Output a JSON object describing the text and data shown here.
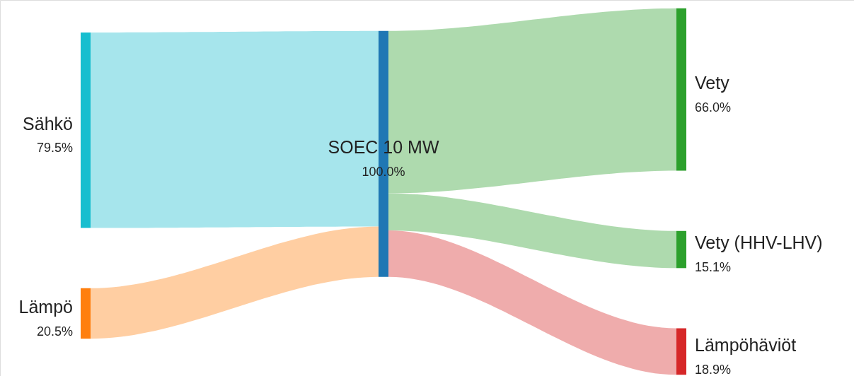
{
  "chart_data": {
    "type": "other",
    "categories": [
      "Sähkö",
      "Lämpö",
      "SOEC 10 MW",
      "Vety",
      "Vety (HHV-LHV)",
      "Lämpöhäviöt"
    ],
    "values": [
      79.5,
      20.5,
      100.0,
      66.0,
      15.1,
      18.9
    ],
    "value_labels": [
      "79.5%",
      "20.5%",
      "100.0%",
      "66.0%",
      "15.1%",
      "18.9%"
    ],
    "colors": [
      "#17becf",
      "#ff7f0e",
      "#1f77b4",
      "#2ca02c",
      "#2ca02c",
      "#d62728"
    ]
  }
}
